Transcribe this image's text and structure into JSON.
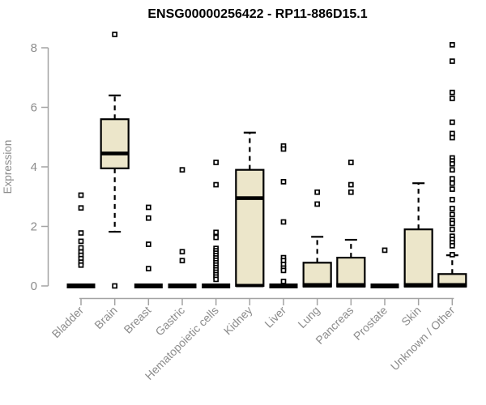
{
  "figure": {
    "title": "ENSG00000256422 - RP11-886D15.1",
    "ylabel": "Expression"
  },
  "colors": {
    "background": "#FFFFFF",
    "box_fill": "#ECE6CA",
    "box_stroke": "#000000",
    "median": "#000000",
    "whisker": "#000000",
    "outlier_stroke": "#000000",
    "outlier_fill": "#FFFFFF",
    "axis_line": "#A3A3A3",
    "axis_text": "#8C8C8C",
    "title_text": "#000000"
  },
  "chart_data": {
    "type": "boxplot",
    "title": "ENSG00000256422 - RP11-886D15.1",
    "xlabel": "",
    "ylabel": "Expression",
    "ylim": [
      0,
      8.6
    ],
    "yticks": [
      0,
      2,
      4,
      6,
      8
    ],
    "grid": false,
    "legend": false,
    "marker": "open-square",
    "categories": [
      "Bladder",
      "Brain",
      "Breast",
      "Gastric",
      "Hematopoietic cells",
      "Kidney",
      "Liver",
      "Lung",
      "Pancreas",
      "Prostate",
      "Skin",
      "Unknown / Other"
    ],
    "boxes": [
      {
        "category": "Bladder",
        "q1": 0,
        "median": 0,
        "q3": 0,
        "whisker_low": 0,
        "whisker_high": 0,
        "outliers": [
          3.05,
          2.62,
          1.78,
          1.5,
          1.28,
          1.14,
          1.03,
          0.92,
          0.8,
          0.7
        ]
      },
      {
        "category": "Brain",
        "q1": 3.95,
        "median": 4.45,
        "q3": 5.6,
        "whisker_low": 1.82,
        "whisker_high": 6.4,
        "outliers": [
          8.45,
          0
        ]
      },
      {
        "category": "Breast",
        "q1": 0,
        "median": 0,
        "q3": 0,
        "whisker_low": 0,
        "whisker_high": 0,
        "outliers": [
          2.64,
          2.28,
          1.4,
          0.58
        ]
      },
      {
        "category": "Gastric",
        "q1": 0,
        "median": 0,
        "q3": 0,
        "whisker_low": 0,
        "whisker_high": 0,
        "outliers": [
          3.9,
          1.15,
          0.85
        ]
      },
      {
        "category": "Hematopoietic cells",
        "q1": 0,
        "median": 0,
        "q3": 0,
        "whisker_low": 0,
        "whisker_high": 0,
        "outliers": [
          4.15,
          3.4,
          1.8,
          1.63,
          1.26,
          1.18,
          1.1,
          1.02,
          0.94,
          0.86,
          0.78,
          0.7,
          0.62,
          0.54,
          0.46,
          0.38,
          0.3,
          0.22
        ]
      },
      {
        "category": "Kidney",
        "q1": 0,
        "median": 2.95,
        "q3": 3.9,
        "whisker_low": 0,
        "whisker_high": 5.15,
        "outliers": []
      },
      {
        "category": "Liver",
        "q1": 0,
        "median": 0,
        "q3": 0,
        "whisker_low": 0,
        "whisker_high": 0,
        "outliers": [
          4.7,
          4.6,
          3.5,
          2.15,
          0.95,
          0.85,
          0.72,
          0.6,
          0.52,
          0.15
        ]
      },
      {
        "category": "Lung",
        "q1": 0,
        "median": 0,
        "q3": 0.78,
        "whisker_low": 0,
        "whisker_high": 1.65,
        "outliers": [
          3.15,
          2.75
        ]
      },
      {
        "category": "Pancreas",
        "q1": 0,
        "median": 0,
        "q3": 0.95,
        "whisker_low": 0,
        "whisker_high": 1.55,
        "outliers": [
          4.15,
          3.4,
          3.15
        ]
      },
      {
        "category": "Prostate",
        "q1": 0,
        "median": 0,
        "q3": 0,
        "whisker_low": 0,
        "whisker_high": 0,
        "outliers": [
          1.2
        ]
      },
      {
        "category": "Skin",
        "q1": 0,
        "median": 0,
        "q3": 1.9,
        "whisker_low": 0,
        "whisker_high": 3.45,
        "outliers": []
      },
      {
        "category": "Unknown / Other",
        "q1": 0,
        "median": 0,
        "q3": 0.4,
        "whisker_low": 0,
        "whisker_high": 1.03,
        "outliers": [
          8.1,
          7.55,
          6.5,
          6.3,
          5.5,
          5.12,
          4.98,
          4.3,
          4.2,
          4.1,
          3.9,
          3.6,
          3.45,
          3.25,
          2.9,
          2.6,
          2.4,
          2.2,
          2.1,
          1.9,
          1.67,
          1.56,
          1.45,
          1.35,
          1.05
        ]
      }
    ]
  }
}
